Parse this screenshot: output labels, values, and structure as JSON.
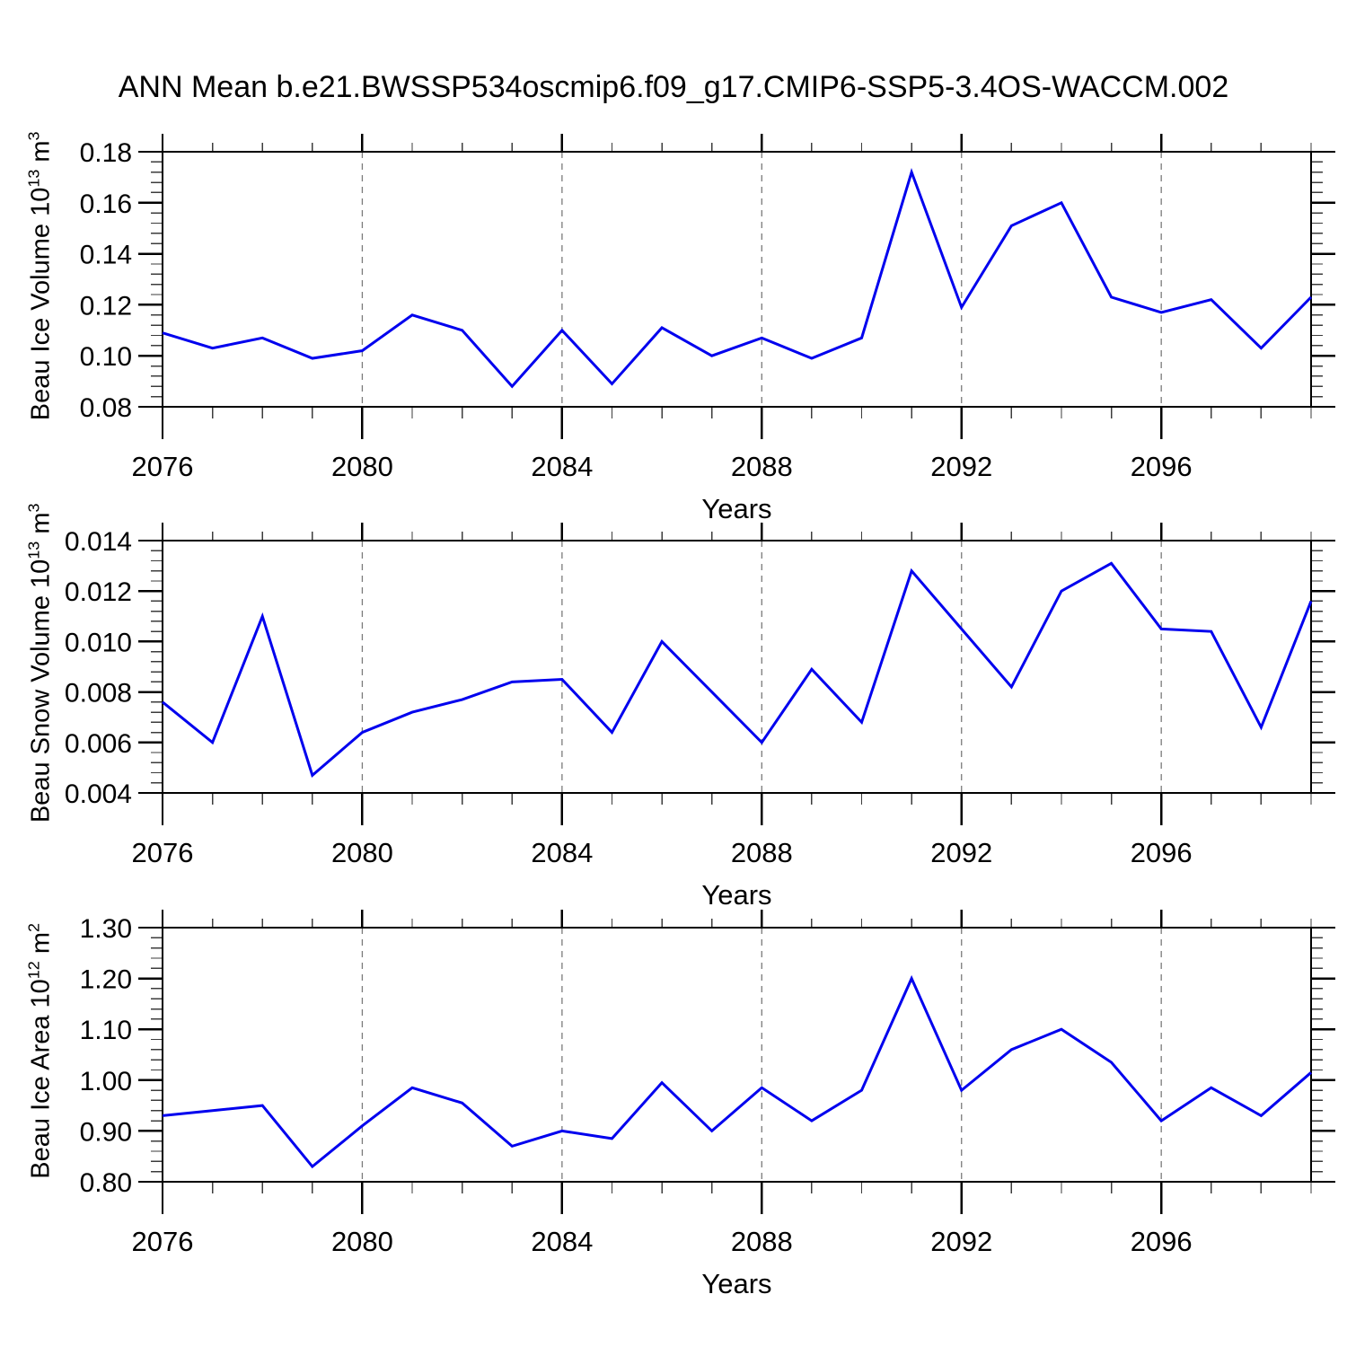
{
  "title": "ANN Mean b.e21.BWSSP534oscmip6.f09_g17.CMIP6-SSP5-3.4OS-WACCM.002",
  "xlabel": "Years",
  "line_color": "#0000EE",
  "grid_color": "#7a7a7a",
  "chart_data": [
    {
      "type": "line",
      "ylabel": "Beau Ice Volume 10^13 m^3",
      "ylabel_parts": {
        "base": "Beau Ice Volume 10",
        "exp": "13",
        "unit": " m",
        "unit_exp": "3"
      },
      "x": [
        2076,
        2077,
        2078,
        2079,
        2080,
        2081,
        2082,
        2083,
        2084,
        2085,
        2086,
        2087,
        2088,
        2089,
        2090,
        2091,
        2092,
        2093,
        2094,
        2095,
        2096,
        2097,
        2098,
        2099
      ],
      "y": [
        0.109,
        0.103,
        0.107,
        0.099,
        0.102,
        0.116,
        0.11,
        0.088,
        0.11,
        0.089,
        0.111,
        0.1,
        0.107,
        0.099,
        0.107,
        0.172,
        0.119,
        0.151,
        0.16,
        0.123,
        0.117,
        0.122,
        0.103,
        0.123
      ],
      "ylim": [
        0.08,
        0.18
      ],
      "yticks": {
        "values": [
          0.08,
          0.1,
          0.12,
          0.14,
          0.16,
          0.18
        ],
        "labels": [
          "0.08",
          "0.10",
          "0.12",
          "0.14",
          "0.16",
          "0.18"
        ],
        "minor_step": 0.004
      },
      "xticks": {
        "values": [
          2076,
          2080,
          2084,
          2088,
          2092,
          2096
        ],
        "labels": [
          "2076",
          "2080",
          "2084",
          "2088",
          "2092",
          "2096"
        ]
      },
      "grid_years": [
        2080,
        2084,
        2088,
        2092,
        2096
      ],
      "grid_on": true,
      "legend": "none"
    },
    {
      "type": "line",
      "ylabel": "Beau Snow Volume 10^13 m^3",
      "ylabel_parts": {
        "base": "Beau Snow Volume 10",
        "exp": "13",
        "unit": " m",
        "unit_exp": "3"
      },
      "x": [
        2076,
        2077,
        2078,
        2079,
        2080,
        2081,
        2082,
        2083,
        2084,
        2085,
        2086,
        2087,
        2088,
        2089,
        2090,
        2091,
        2092,
        2093,
        2094,
        2095,
        2096,
        2097,
        2098,
        2099
      ],
      "y": [
        0.0076,
        0.006,
        0.011,
        0.0047,
        0.0064,
        0.0072,
        0.0077,
        0.0084,
        0.0085,
        0.0064,
        0.01,
        0.008,
        0.006,
        0.0089,
        0.0068,
        0.0128,
        0.0105,
        0.0082,
        0.012,
        0.0131,
        0.0105,
        0.0104,
        0.0066,
        0.0116
      ],
      "ylim": [
        0.004,
        0.014
      ],
      "yticks": {
        "values": [
          0.004,
          0.006,
          0.008,
          0.01,
          0.012,
          0.014
        ],
        "labels": [
          "0.004",
          "0.006",
          "0.008",
          "0.010",
          "0.012",
          "0.014"
        ],
        "minor_step": 0.0004
      },
      "xticks": {
        "values": [
          2076,
          2080,
          2084,
          2088,
          2092,
          2096
        ],
        "labels": [
          "2076",
          "2080",
          "2084",
          "2088",
          "2092",
          "2096"
        ]
      },
      "grid_years": [
        2080,
        2084,
        2088,
        2092,
        2096
      ],
      "grid_on": true,
      "legend": "none"
    },
    {
      "type": "line",
      "ylabel": "Beau Ice Area 10^12 m^2",
      "ylabel_parts": {
        "base": "Beau Ice Area 10",
        "exp": "12",
        "unit": " m",
        "unit_exp": "2"
      },
      "x": [
        2076,
        2077,
        2078,
        2079,
        2080,
        2081,
        2082,
        2083,
        2084,
        2085,
        2086,
        2087,
        2088,
        2089,
        2090,
        2091,
        2092,
        2093,
        2094,
        2095,
        2096,
        2097,
        2098,
        2099
      ],
      "y": [
        0.93,
        0.94,
        0.95,
        0.83,
        0.91,
        0.985,
        0.955,
        0.87,
        0.9,
        0.885,
        0.995,
        0.9,
        0.985,
        0.92,
        0.98,
        1.2,
        0.98,
        1.06,
        1.1,
        1.035,
        0.92,
        0.985,
        0.93,
        1.015
      ],
      "ylim": [
        0.8,
        1.3
      ],
      "yticks": {
        "values": [
          0.8,
          0.9,
          1.0,
          1.1,
          1.2,
          1.3
        ],
        "labels": [
          "0.80",
          "0.90",
          "1.00",
          "1.10",
          "1.20",
          "1.30"
        ],
        "minor_step": 0.02
      },
      "xticks": {
        "values": [
          2076,
          2080,
          2084,
          2088,
          2092,
          2096
        ],
        "labels": [
          "2076",
          "2080",
          "2084",
          "2088",
          "2092",
          "2096"
        ]
      },
      "grid_years": [
        2080,
        2084,
        2088,
        2092,
        2096
      ],
      "grid_on": true,
      "legend": "none"
    }
  ]
}
